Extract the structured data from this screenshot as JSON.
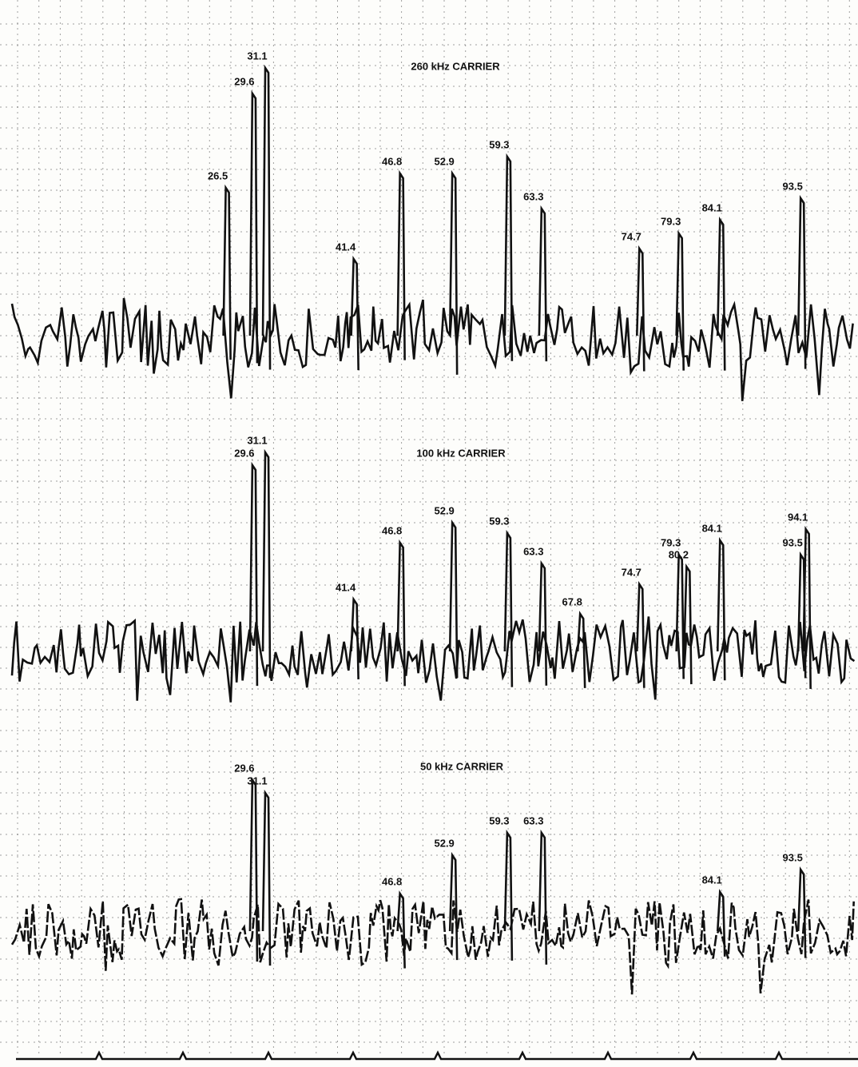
{
  "chart_data": [
    {
      "type": "line",
      "title": "260 kHz CARRIER",
      "xlim": [
        0,
        100
      ],
      "peaks": [
        26.5,
        29.6,
        31.1,
        41.4,
        46.8,
        52.9,
        59.3,
        63.3,
        74.7,
        79.3,
        84.1,
        93.5
      ]
    },
    {
      "type": "line",
      "title": "100 kHz CARRIER",
      "xlim": [
        0,
        100
      ],
      "peaks": [
        29.6,
        31.1,
        41.4,
        46.8,
        52.9,
        59.3,
        63.3,
        67.8,
        74.7,
        79.3,
        80.2,
        84.1,
        93.5,
        94.1
      ]
    },
    {
      "type": "line",
      "title": "50 kHz CARRIER",
      "xlim": [
        0,
        100
      ],
      "peaks": [
        29.6,
        31.1,
        46.8,
        52.9,
        59.3,
        63.3,
        84.1,
        93.5
      ]
    }
  ]
}
